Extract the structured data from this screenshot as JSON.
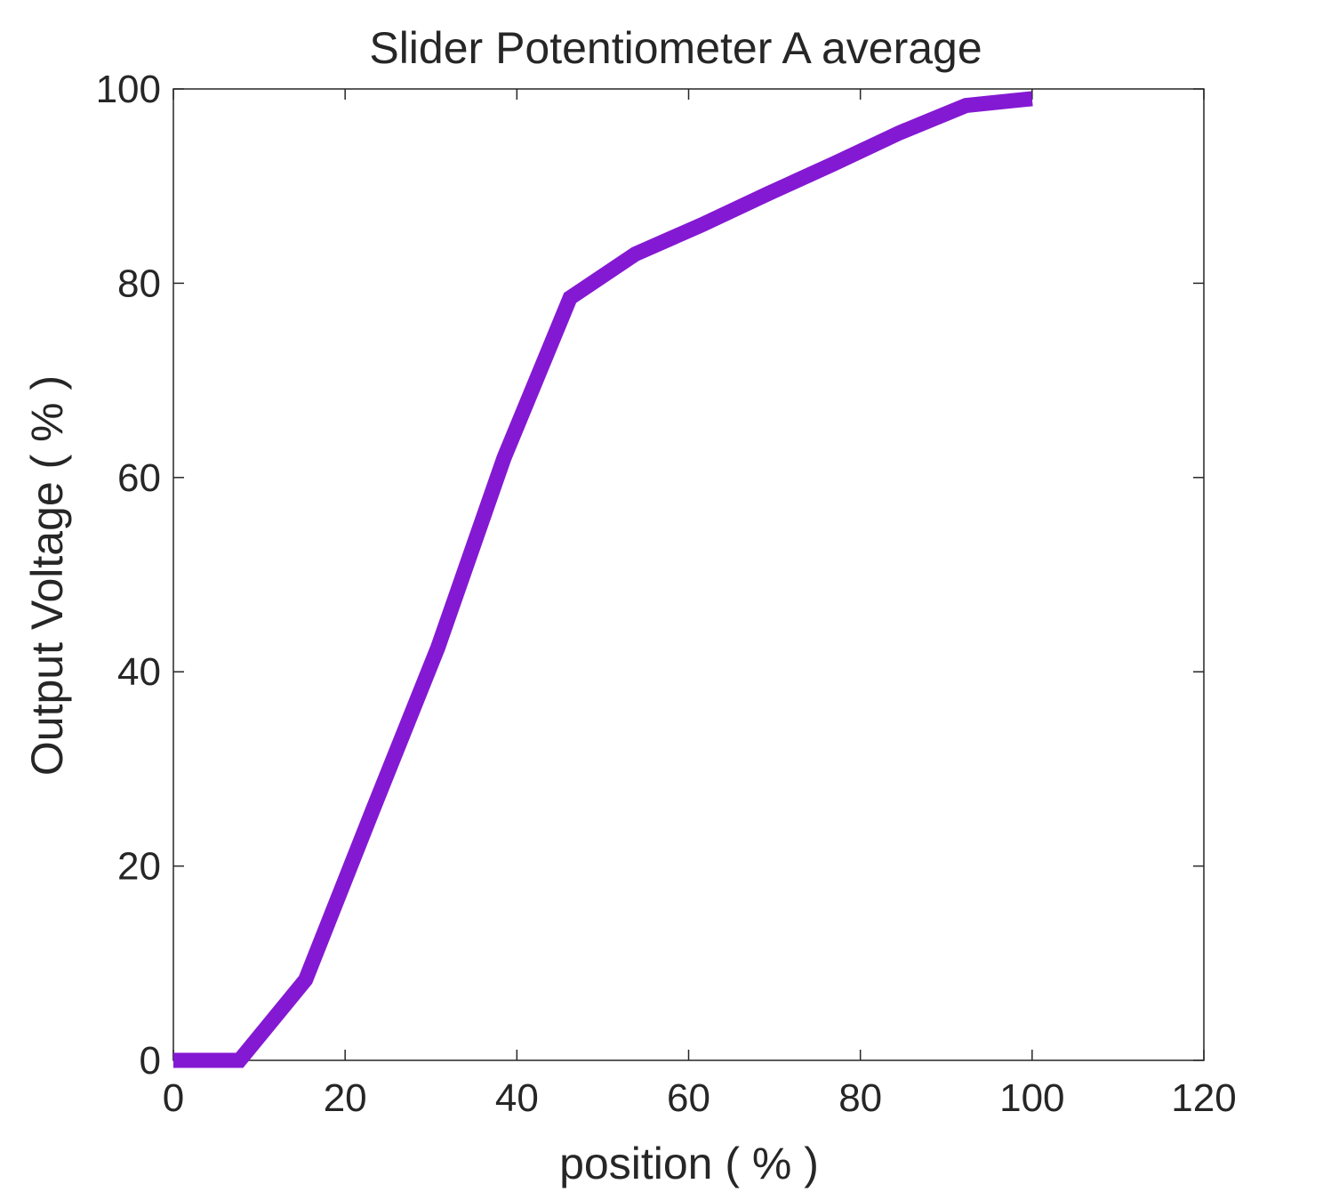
{
  "chart_data": {
    "type": "line",
    "title": "Slider  Potentiometer  A  average",
    "xlabel": "position ( % )",
    "ylabel": "Output Voltage ( % )",
    "xlim": [
      0,
      120
    ],
    "ylim": [
      0,
      100
    ],
    "xticks": [
      0,
      20,
      40,
      60,
      80,
      100,
      120
    ],
    "yticks": [
      0,
      20,
      40,
      60,
      80,
      100
    ],
    "grid": false,
    "box": true,
    "series": [
      {
        "color": "#8419d3",
        "points": [
          [
            0,
            0
          ],
          [
            7.7,
            0
          ],
          [
            15.4,
            8.3
          ],
          [
            23.1,
            25.5
          ],
          [
            30.8,
            42.5
          ],
          [
            38.5,
            62.0
          ],
          [
            46.2,
            78.5
          ],
          [
            53.8,
            83.0
          ],
          [
            61.5,
            86.0
          ],
          [
            69.2,
            89.2
          ],
          [
            76.9,
            92.3
          ],
          [
            84.6,
            95.5
          ],
          [
            92.3,
            98.3
          ],
          [
            100,
            99.0
          ]
        ]
      }
    ]
  }
}
